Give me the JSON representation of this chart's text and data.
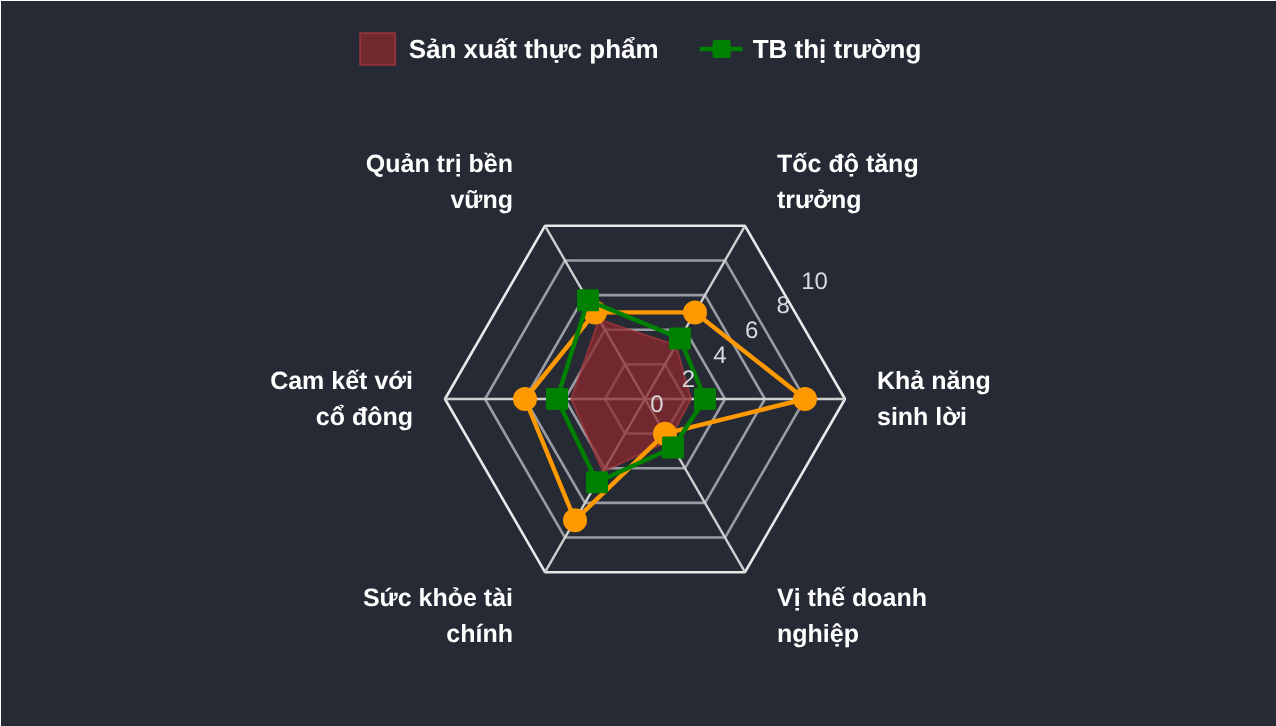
{
  "chart_data": {
    "type": "radar",
    "categories": [
      "Tốc độ tăng trưởng",
      "Khả năng sinh lời",
      "Vị thế doanh nghiệp",
      "Sức khỏe tài chính",
      "Cam kết với cổ đông",
      "Quản trị bền vững"
    ],
    "series": [
      {
        "type": "area",
        "name": "Sản xuất thực phẩm",
        "color": "#8b2a2e",
        "marker": "none",
        "values": [
          3.1,
          2.3,
          2.4,
          4.2,
          3.7,
          4.6
        ]
      },
      {
        "color": "#ff9900",
        "marker": "circle",
        "values": [
          5,
          8,
          2,
          7,
          6,
          5
        ]
      },
      {
        "name": "TB thị trường",
        "color": "#008000",
        "marker": "square",
        "values": [
          3.5,
          3,
          2.8,
          4.8,
          4.4,
          5.7
        ]
      }
    ],
    "ylim": [
      0,
      10
    ],
    "yticks": [
      0,
      2,
      4,
      6,
      8,
      10
    ],
    "grid": true,
    "legend": "top"
  }
}
